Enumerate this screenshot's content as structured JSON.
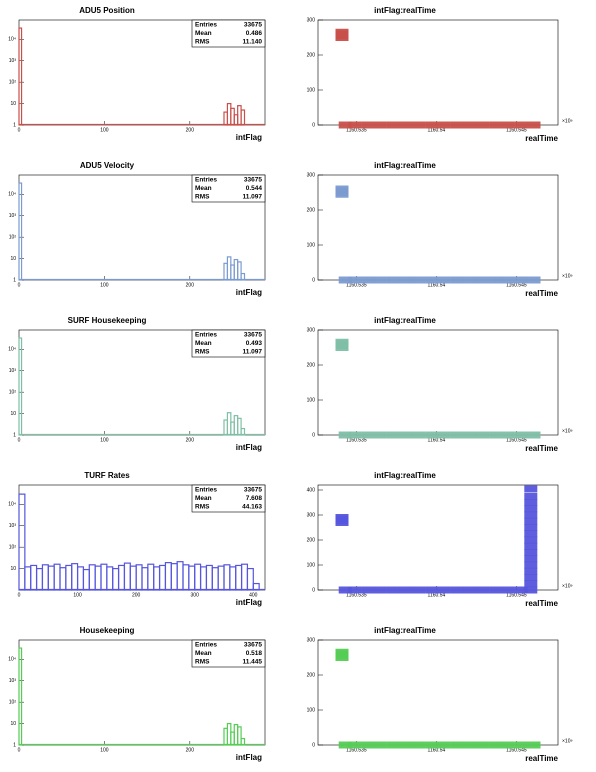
{
  "chart_data": [
    {
      "type": "histogram",
      "title": "ADU5 Position",
      "xlabel": "intFlag",
      "color": "#c8504a",
      "log_y": true,
      "bins": [
        0,
        3,
        240,
        244,
        248,
        252,
        256,
        260,
        264
      ],
      "values": [
        33600,
        0,
        4,
        10,
        6,
        3,
        8,
        5
      ],
      "xlim": [
        0,
        288
      ],
      "xticks": [
        0,
        100,
        200
      ],
      "ylim": [
        1,
        80000
      ],
      "yticks": [
        1,
        10,
        {
          "value": 100,
          "label": "10²"
        },
        {
          "value": 1000,
          "label": "10³"
        },
        {
          "value": 10000,
          "label": "10⁴"
        }
      ],
      "stats": [
        [
          "Entries",
          "33675"
        ],
        [
          "Mean",
          "0.486"
        ],
        [
          "RMS",
          "11.140"
        ]
      ]
    },
    {
      "type": "scatter",
      "title": "intFlag:realTime",
      "xlabel": "realTime",
      "x_multiplier": "×10⁹",
      "color": "#c8504a",
      "x": [
        1160.5341,
        1160.5341,
        1160.5341,
        1160.5341,
        1160.5343,
        1160.5349,
        1160.5357,
        1160.5365,
        1160.5373,
        1160.5381,
        1160.5389,
        1160.5397,
        1160.5405,
        1160.5413,
        1160.5421,
        1160.5429,
        1160.5437,
        1160.5445,
        1160.5453,
        1160.5461
      ],
      "y": [
        250,
        255,
        260,
        265,
        0,
        0,
        0,
        0,
        0,
        0,
        0,
        0,
        0,
        0,
        0,
        0,
        0,
        0,
        0,
        0
      ],
      "xlim": [
        1160.5326,
        1160.5476
      ],
      "xticks": [
        1160.535,
        1160.54,
        1160.545
      ],
      "ylim": [
        0,
        300
      ],
      "yticks": [
        0,
        100,
        200,
        300
      ]
    },
    {
      "type": "histogram",
      "title": "ADU5 Velocity",
      "xlabel": "intFlag",
      "color": "#7b9bd0",
      "log_y": true,
      "bins": [
        0,
        3,
        240,
        244,
        248,
        252,
        256,
        260,
        264
      ],
      "values": [
        33600,
        0,
        6,
        12,
        5,
        9,
        7,
        2
      ],
      "xlim": [
        0,
        288
      ],
      "xticks": [
        0,
        100,
        200
      ],
      "ylim": [
        1,
        80000
      ],
      "yticks": [
        1,
        10,
        {
          "value": 100,
          "label": "10²"
        },
        {
          "value": 1000,
          "label": "10³"
        },
        {
          "value": 10000,
          "label": "10⁴"
        }
      ],
      "stats": [
        [
          "Entries",
          "33675"
        ],
        [
          "Mean",
          "0.544"
        ],
        [
          "RMS",
          "11.097"
        ]
      ]
    },
    {
      "type": "scatter",
      "title": "intFlag:realTime",
      "xlabel": "realTime",
      "x_multiplier": "×10⁹",
      "color": "#7b9bd0",
      "x": [
        1160.5341,
        1160.5341,
        1160.5341,
        1160.5341,
        1160.5343,
        1160.5349,
        1160.5357,
        1160.5365,
        1160.5373,
        1160.5381,
        1160.5389,
        1160.5397,
        1160.5405,
        1160.5413,
        1160.5421,
        1160.5429,
        1160.5437,
        1160.5445,
        1160.5453,
        1160.5461
      ],
      "y": [
        245,
        250,
        255,
        260,
        0,
        0,
        0,
        0,
        0,
        0,
        0,
        0,
        0,
        0,
        0,
        0,
        0,
        0,
        0,
        0
      ],
      "xlim": [
        1160.5326,
        1160.5476
      ],
      "xticks": [
        1160.535,
        1160.54,
        1160.545
      ],
      "ylim": [
        0,
        300
      ],
      "yticks": [
        0,
        100,
        200,
        300
      ]
    },
    {
      "type": "histogram",
      "title": "SURF Housekeeping",
      "xlabel": "intFlag",
      "color": "#7fbfa6",
      "log_y": true,
      "bins": [
        0,
        3,
        240,
        244,
        248,
        252,
        256,
        260,
        264
      ],
      "values": [
        33600,
        0,
        5,
        11,
        4,
        8,
        6,
        2
      ],
      "xlim": [
        0,
        288
      ],
      "xticks": [
        0,
        100,
        200
      ],
      "ylim": [
        1,
        80000
      ],
      "yticks": [
        1,
        10,
        {
          "value": 100,
          "label": "10²"
        },
        {
          "value": 1000,
          "label": "10³"
        },
        {
          "value": 10000,
          "label": "10⁴"
        }
      ],
      "stats": [
        [
          "Entries",
          "33675"
        ],
        [
          "Mean",
          "0.493"
        ],
        [
          "RMS",
          "11.097"
        ]
      ]
    },
    {
      "type": "scatter",
      "title": "intFlag:realTime",
      "xlabel": "realTime",
      "x_multiplier": "×10⁹",
      "color": "#7fbfa6",
      "x": [
        1160.5341,
        1160.5341,
        1160.5341,
        1160.5341,
        1160.5343,
        1160.5349,
        1160.5357,
        1160.5365,
        1160.5373,
        1160.5381,
        1160.5389,
        1160.5397,
        1160.5405,
        1160.5413,
        1160.5421,
        1160.5429,
        1160.5437,
        1160.5445,
        1160.5453,
        1160.5461
      ],
      "y": [
        250,
        255,
        260,
        265,
        0,
        0,
        0,
        0,
        0,
        0,
        0,
        0,
        0,
        0,
        0,
        0,
        0,
        0,
        0,
        0
      ],
      "xlim": [
        1160.5326,
        1160.5476
      ],
      "xticks": [
        1160.535,
        1160.54,
        1160.545
      ],
      "ylim": [
        0,
        300
      ],
      "yticks": [
        0,
        100,
        200,
        300
      ]
    },
    {
      "type": "histogram",
      "title": "TURF Rates",
      "xlabel": "intFlag",
      "color": "#5555dd",
      "log_y": true,
      "bins": [
        0,
        10,
        20,
        30,
        40,
        50,
        60,
        70,
        80,
        90,
        100,
        110,
        120,
        130,
        140,
        150,
        160,
        170,
        180,
        190,
        200,
        210,
        220,
        230,
        240,
        250,
        260,
        270,
        280,
        290,
        300,
        310,
        320,
        330,
        340,
        350,
        360,
        370,
        380,
        390,
        400,
        410
      ],
      "values": [
        30000,
        12,
        14,
        10,
        15,
        13,
        16,
        11,
        14,
        17,
        12,
        9,
        15,
        13,
        16,
        12,
        10,
        14,
        18,
        13,
        15,
        11,
        16,
        12,
        14,
        19,
        17,
        21,
        15,
        13,
        16,
        12,
        14,
        11,
        13,
        15,
        12,
        14,
        16,
        10,
        2
      ],
      "xlim": [
        0,
        420
      ],
      "xticks": [
        0,
        100,
        200,
        300,
        400
      ],
      "ylim": [
        1,
        80000
      ],
      "yticks": [
        10,
        {
          "value": 100,
          "label": "10²"
        },
        {
          "value": 1000,
          "label": "10³"
        },
        {
          "value": 10000,
          "label": "10⁴"
        }
      ],
      "stats": [
        [
          "Entries",
          "33675"
        ],
        [
          "Mean",
          "7.608"
        ],
        [
          "RMS",
          "44.163"
        ]
      ]
    },
    {
      "type": "scatter",
      "title": "intFlag:realTime",
      "xlabel": "realTime",
      "x_multiplier": "×10⁹",
      "color": "#5555dd",
      "x": [
        1160.5341,
        1160.5341,
        1160.5341,
        1160.5341,
        1160.5343,
        1160.5349,
        1160.5357,
        1160.5365,
        1160.5373,
        1160.5381,
        1160.5389,
        1160.5397,
        1160.5405,
        1160.5413,
        1160.5421,
        1160.5429,
        1160.5437,
        1160.5445,
        1160.5453,
        1160.5459,
        1160.5459,
        1160.5459,
        1160.5459,
        1160.5459,
        1160.5459,
        1160.5459,
        1160.5459,
        1160.5459,
        1160.5459,
        1160.5459,
        1160.5459,
        1160.5459,
        1160.5459,
        1160.5459,
        1160.5459,
        1160.5459
      ],
      "y": [
        270,
        277,
        284,
        290,
        0,
        0,
        0,
        0,
        0,
        0,
        0,
        0,
        0,
        0,
        0,
        0,
        0,
        0,
        0,
        0,
        25,
        50,
        75,
        100,
        125,
        150,
        175,
        200,
        225,
        250,
        275,
        300,
        325,
        350,
        375,
        405
      ],
      "xlim": [
        1160.5326,
        1160.5476
      ],
      "xticks": [
        1160.535,
        1160.54,
        1160.545
      ],
      "ylim": [
        0,
        420
      ],
      "yticks": [
        0,
        100,
        200,
        300,
        400
      ]
    },
    {
      "type": "histogram",
      "title": "Housekeeping",
      "xlabel": "intFlag",
      "color": "#55cc55",
      "log_y": true,
      "bins": [
        0,
        3,
        240,
        244,
        248,
        252,
        256,
        260,
        264
      ],
      "values": [
        33600,
        0,
        6,
        10,
        4,
        9,
        7,
        2
      ],
      "xlim": [
        0,
        288
      ],
      "xticks": [
        0,
        100,
        200
      ],
      "ylim": [
        1,
        80000
      ],
      "yticks": [
        1,
        10,
        {
          "value": 100,
          "label": "10²"
        },
        {
          "value": 1000,
          "label": "10³"
        },
        {
          "value": 10000,
          "label": "10⁴"
        }
      ],
      "stats": [
        [
          "Entries",
          "33675"
        ],
        [
          "Mean",
          "0.518"
        ],
        [
          "RMS",
          "11.445"
        ]
      ]
    },
    {
      "type": "scatter",
      "title": "intFlag:realTime",
      "xlabel": "realTime",
      "x_multiplier": "×10⁹",
      "color": "#55cc55",
      "x": [
        1160.5341,
        1160.5341,
        1160.5341,
        1160.5341,
        1160.5343,
        1160.5349,
        1160.5357,
        1160.5365,
        1160.5373,
        1160.5381,
        1160.5389,
        1160.5397,
        1160.5405,
        1160.5413,
        1160.5421,
        1160.5429,
        1160.5437,
        1160.5445,
        1160.5453,
        1160.5461
      ],
      "y": [
        250,
        255,
        260,
        265,
        0,
        0,
        0,
        0,
        0,
        0,
        0,
        0,
        0,
        0,
        0,
        0,
        0,
        0,
        0,
        0
      ],
      "xlim": [
        1160.5326,
        1160.5476
      ],
      "xticks": [
        1160.535,
        1160.54,
        1160.545
      ],
      "ylim": [
        0,
        300
      ],
      "yticks": [
        0,
        100,
        200,
        300
      ]
    }
  ]
}
